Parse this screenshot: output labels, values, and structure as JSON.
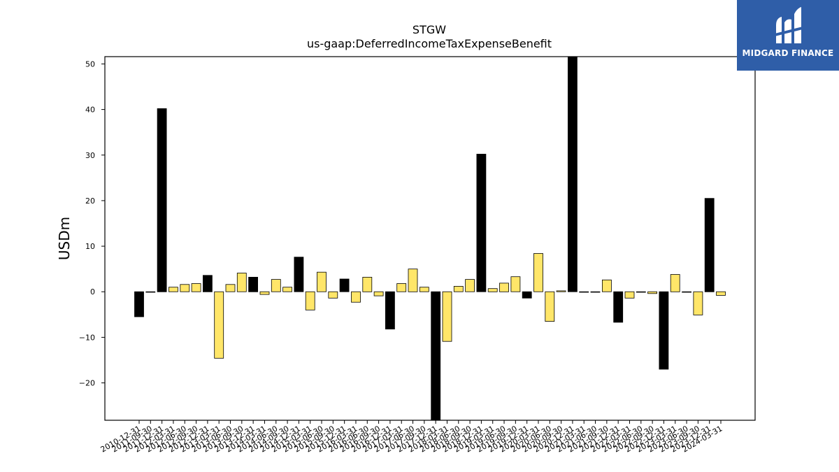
{
  "chart_data": {
    "type": "bar",
    "title": "STGW",
    "subtitle": "us-gaap:DeferredIncomeTaxExpenseBenefit",
    "xlabel": "",
    "ylabel": "USDm",
    "ylim": [
      -28.2,
      51.6
    ],
    "yticks": [
      -20,
      -10,
      0,
      10,
      20,
      30,
      40,
      50
    ],
    "grid": false,
    "colors": {
      "annual": "#000000",
      "quarterly": "#ffe669"
    },
    "categories": [
      "2010-12-31",
      "2011-09-30",
      "2011-12-31",
      "2012-03-31",
      "2012-06-30",
      "2012-09-30",
      "2012-12-31",
      "2013-03-31",
      "2013-06-30",
      "2013-09-30",
      "2013-12-31",
      "2014-03-31",
      "2014-06-30",
      "2014-09-30",
      "2014-12-31",
      "2015-03-31",
      "2015-06-30",
      "2015-09-30",
      "2015-12-31",
      "2016-03-31",
      "2016-06-30",
      "2016-09-30",
      "2016-12-31",
      "2017-03-31",
      "2017-06-30",
      "2017-09-30",
      "2017-12-31",
      "2018-03-31",
      "2018-06-30",
      "2018-09-30",
      "2018-12-31",
      "2019-03-31",
      "2019-06-30",
      "2019-09-30",
      "2019-12-31",
      "2020-03-31",
      "2020-06-30",
      "2020-09-30",
      "2020-12-31",
      "2021-03-31",
      "2021-06-30",
      "2021-09-30",
      "2021-12-31",
      "2022-03-31",
      "2022-06-30",
      "2022-09-30",
      "2022-12-31",
      "2023-03-31",
      "2023-06-30",
      "2023-09-30",
      "2023-12-31",
      "2024-03-31"
    ],
    "values": [
      -5.5,
      -0.1,
      40.2,
      1.0,
      1.6,
      1.8,
      3.6,
      -14.6,
      1.6,
      4.1,
      3.2,
      -0.6,
      2.7,
      1.0,
      7.6,
      -4.0,
      4.3,
      -1.4,
      2.8,
      -2.3,
      3.2,
      -0.9,
      -8.2,
      1.8,
      5.0,
      1.0,
      -28.2,
      -10.9,
      1.2,
      2.7,
      30.2,
      0.7,
      1.9,
      3.3,
      -1.4,
      8.4,
      -6.5,
      0.2,
      51.6,
      -0.1,
      -0.1,
      2.6,
      -6.7,
      -1.4,
      -0.1,
      -0.4,
      -17.0,
      3.8,
      -0.1,
      -5.1,
      20.5,
      -0.8
    ],
    "kinds": [
      "A",
      "Q",
      "A",
      "Q",
      "Q",
      "Q",
      "A",
      "Q",
      "Q",
      "Q",
      "A",
      "Q",
      "Q",
      "Q",
      "A",
      "Q",
      "Q",
      "Q",
      "A",
      "Q",
      "Q",
      "Q",
      "A",
      "Q",
      "Q",
      "Q",
      "A",
      "Q",
      "Q",
      "Q",
      "A",
      "Q",
      "Q",
      "Q",
      "A",
      "Q",
      "Q",
      "Q",
      "A",
      "Q",
      "Q",
      "Q",
      "A",
      "Q",
      "Q",
      "Q",
      "A",
      "Q",
      "Q",
      "Q",
      "A",
      "Q"
    ]
  },
  "logo": {
    "text": "MIDGARD FINANCE",
    "icon": "midgard-logo-icon"
  }
}
